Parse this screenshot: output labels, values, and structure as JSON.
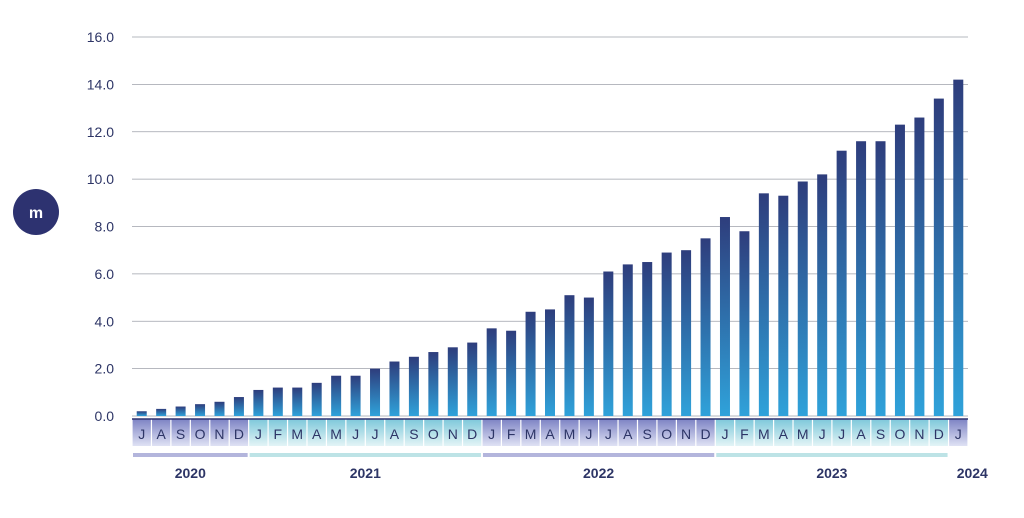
{
  "chart_data": {
    "type": "bar",
    "unit_label": "m",
    "ylim": [
      0,
      16
    ],
    "yticks": [
      "0.0",
      "2.0",
      "4.0",
      "6.0",
      "8.0",
      "10.0",
      "12.0",
      "14.0",
      "16.0"
    ],
    "grid": true,
    "categories": [
      "J",
      "A",
      "S",
      "O",
      "N",
      "D",
      "J",
      "F",
      "M",
      "A",
      "M",
      "J",
      "J",
      "A",
      "S",
      "O",
      "N",
      "D",
      "J",
      "F",
      "M",
      "A",
      "M",
      "J",
      "J",
      "A",
      "S",
      "O",
      "N",
      "D",
      "J",
      "F",
      "M",
      "A",
      "M",
      "J",
      "J",
      "A",
      "S",
      "O",
      "N",
      "D",
      "J"
    ],
    "values": [
      0.2,
      0.3,
      0.4,
      0.5,
      0.6,
      0.8,
      1.1,
      1.2,
      1.2,
      1.4,
      1.7,
      1.7,
      2.0,
      2.3,
      2.5,
      2.7,
      2.9,
      3.1,
      3.7,
      3.6,
      4.4,
      4.5,
      5.1,
      5.0,
      6.1,
      6.4,
      6.5,
      6.9,
      7.0,
      7.5,
      8.4,
      7.8,
      9.4,
      9.3,
      9.9,
      10.2,
      11.2,
      11.6,
      11.6,
      12.3,
      12.6,
      13.4,
      14.2
    ],
    "years": [
      {
        "label": "2020",
        "start": 0,
        "end": 5,
        "color": "#b3b5dc"
      },
      {
        "label": "2021",
        "start": 6,
        "end": 17,
        "color": "#bde3e6"
      },
      {
        "label": "2022",
        "start": 18,
        "end": 29,
        "color": "#b3b5dc"
      },
      {
        "label": "2023",
        "start": 30,
        "end": 41,
        "color": "#bde3e6"
      },
      {
        "label": "2024",
        "start": 42,
        "end": 42,
        "color": null
      }
    ],
    "colors": {
      "bar_top": "#2e3d7c",
      "bar_bottom": "#2fa2da",
      "text": "#2d3566",
      "grid": "#9ea0aa",
      "badge": "#2d3270"
    }
  }
}
